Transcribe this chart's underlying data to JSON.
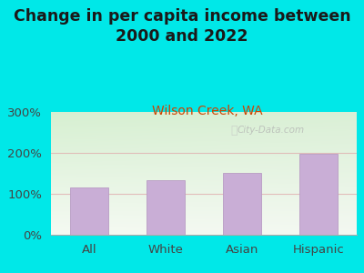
{
  "title": "Change in per capita income between\n2000 and 2022",
  "subtitle": "Wilson Creek, WA",
  "categories": [
    "All",
    "White",
    "Asian",
    "Hispanic"
  ],
  "values": [
    116,
    133,
    152,
    197
  ],
  "bar_color": "#c9aed6",
  "bar_edge_color": "#b89cc4",
  "title_fontsize": 12.5,
  "subtitle_fontsize": 10,
  "subtitle_color": "#cc4400",
  "tick_label_fontsize": 9.5,
  "axis_label_color": "#444444",
  "background_outer": "#00e8e8",
  "plot_bg_top_left": "#d8f0d0",
  "plot_bg_top_right": "#e8e8e8",
  "plot_bg_bottom": "#f0f8ec",
  "ylim": [
    0,
    300
  ],
  "yticks": [
    0,
    100,
    200,
    300
  ],
  "ytick_labels": [
    "0%",
    "100%",
    "200%",
    "300%"
  ],
  "watermark": "City-Data.com",
  "gridline_color": "#e0b0b0",
  "gridline_alpha": 0.8,
  "bar_width": 0.5
}
